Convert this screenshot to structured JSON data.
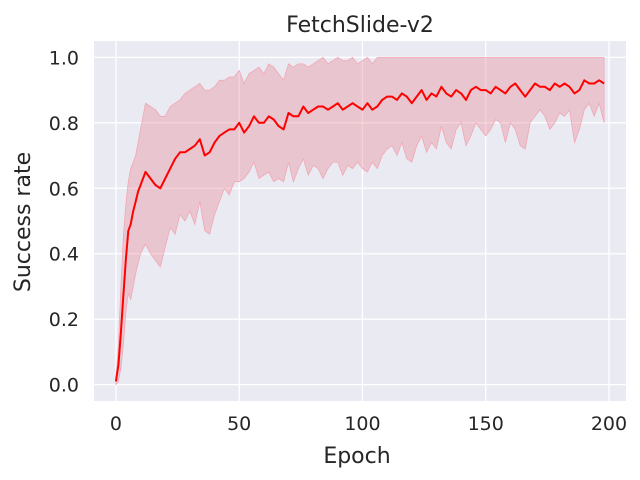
{
  "chart_data": {
    "type": "line",
    "title": "FetchSlide-v2",
    "xlabel": "Epoch",
    "ylabel": "Success rate",
    "xlim": [
      -8.9,
      206.9
    ],
    "ylim": [
      -0.05,
      1.05
    ],
    "xticks": [
      0,
      50,
      100,
      150,
      200
    ],
    "yticks": [
      0.0,
      0.2,
      0.4,
      0.6,
      0.8,
      1.0
    ],
    "xtick_labels": [
      "0",
      "50",
      "100",
      "150",
      "200"
    ],
    "ytick_labels": [
      "0.0",
      "0.2",
      "0.4",
      "0.6",
      "0.8",
      "1.0"
    ],
    "grid": true,
    "style": {
      "background": "#eaeaf2",
      "grid_color": "#ffffff",
      "line_color": "#ff0000",
      "band_fill": "rgba(232,130,145,0.35)",
      "band_edge": "#f2a7b4"
    },
    "series": [
      {
        "x": [
          0,
          1,
          2,
          3,
          4,
          5,
          6,
          7,
          8,
          9,
          10,
          12,
          14,
          16,
          18,
          20,
          22,
          24,
          26,
          28,
          30,
          32,
          34,
          36,
          38,
          40,
          42,
          44,
          46,
          48,
          50,
          52,
          54,
          56,
          58,
          60,
          62,
          64,
          66,
          68,
          70,
          72,
          74,
          76,
          78,
          80,
          82,
          84,
          86,
          88,
          90,
          92,
          94,
          96,
          98,
          100,
          102,
          104,
          106,
          108,
          110,
          112,
          114,
          116,
          118,
          120,
          122,
          124,
          126,
          128,
          130,
          132,
          134,
          136,
          138,
          140,
          142,
          144,
          146,
          148,
          150,
          152,
          154,
          156,
          158,
          160,
          162,
          164,
          166,
          168,
          170,
          172,
          174,
          176,
          178,
          180,
          182,
          184,
          186,
          188,
          190,
          192,
          194,
          196,
          198
        ],
        "y": [
          0.01,
          0.06,
          0.16,
          0.27,
          0.38,
          0.47,
          0.49,
          0.53,
          0.56,
          0.59,
          0.61,
          0.65,
          0.63,
          0.61,
          0.6,
          0.63,
          0.66,
          0.69,
          0.71,
          0.71,
          0.72,
          0.73,
          0.75,
          0.7,
          0.71,
          0.74,
          0.76,
          0.77,
          0.78,
          0.78,
          0.8,
          0.77,
          0.79,
          0.82,
          0.8,
          0.8,
          0.82,
          0.81,
          0.79,
          0.78,
          0.83,
          0.82,
          0.82,
          0.85,
          0.83,
          0.84,
          0.85,
          0.85,
          0.84,
          0.85,
          0.86,
          0.84,
          0.85,
          0.86,
          0.85,
          0.84,
          0.86,
          0.84,
          0.85,
          0.87,
          0.88,
          0.88,
          0.87,
          0.89,
          0.88,
          0.86,
          0.88,
          0.9,
          0.87,
          0.89,
          0.88,
          0.91,
          0.89,
          0.88,
          0.9,
          0.89,
          0.87,
          0.9,
          0.91,
          0.9,
          0.9,
          0.89,
          0.91,
          0.9,
          0.89,
          0.91,
          0.92,
          0.9,
          0.88,
          0.9,
          0.92,
          0.91,
          0.91,
          0.9,
          0.92,
          0.91,
          0.92,
          0.91,
          0.89,
          0.9,
          0.93,
          0.92,
          0.92,
          0.93,
          0.92
        ],
        "lower": [
          0.0,
          0.01,
          0.05,
          0.12,
          0.22,
          0.28,
          0.26,
          0.3,
          0.34,
          0.37,
          0.4,
          0.43,
          0.4,
          0.38,
          0.36,
          0.42,
          0.48,
          0.46,
          0.52,
          0.5,
          0.53,
          0.49,
          0.56,
          0.47,
          0.46,
          0.52,
          0.56,
          0.6,
          0.58,
          0.62,
          0.62,
          0.63,
          0.65,
          0.68,
          0.63,
          0.64,
          0.65,
          0.62,
          0.63,
          0.62,
          0.68,
          0.62,
          0.66,
          0.69,
          0.64,
          0.67,
          0.66,
          0.63,
          0.66,
          0.68,
          0.68,
          0.64,
          0.67,
          0.66,
          0.68,
          0.66,
          0.65,
          0.68,
          0.66,
          0.7,
          0.72,
          0.73,
          0.7,
          0.74,
          0.69,
          0.68,
          0.73,
          0.76,
          0.71,
          0.74,
          0.72,
          0.79,
          0.74,
          0.72,
          0.78,
          0.8,
          0.73,
          0.76,
          0.8,
          0.78,
          0.76,
          0.78,
          0.81,
          0.8,
          0.74,
          0.8,
          0.78,
          0.73,
          0.72,
          0.8,
          0.82,
          0.84,
          0.82,
          0.78,
          0.8,
          0.83,
          0.82,
          0.84,
          0.74,
          0.78,
          0.84,
          0.86,
          0.82,
          0.86,
          0.8
        ],
        "upper": [
          0.02,
          0.12,
          0.3,
          0.45,
          0.55,
          0.62,
          0.66,
          0.68,
          0.7,
          0.74,
          0.78,
          0.86,
          0.85,
          0.84,
          0.82,
          0.82,
          0.85,
          0.86,
          0.87,
          0.89,
          0.9,
          0.91,
          0.92,
          0.9,
          0.9,
          0.91,
          0.93,
          0.93,
          0.94,
          0.94,
          0.96,
          0.92,
          0.95,
          0.96,
          0.97,
          0.95,
          0.98,
          0.97,
          0.95,
          0.93,
          0.98,
          0.97,
          0.98,
          0.98,
          0.97,
          0.98,
          0.99,
          1.0,
          0.98,
          0.99,
          1.0,
          0.99,
          0.99,
          1.0,
          0.98,
          0.99,
          1.0,
          0.98,
          1.0,
          1.0,
          1.0,
          1.0,
          1.0,
          1.0,
          1.0,
          1.0,
          1.0,
          1.0,
          1.0,
          1.0,
          1.0,
          1.0,
          1.0,
          1.0,
          1.0,
          1.0,
          1.0,
          1.0,
          1.0,
          1.0,
          1.0,
          1.0,
          1.0,
          1.0,
          1.0,
          1.0,
          1.0,
          1.0,
          1.0,
          1.0,
          1.0,
          1.0,
          1.0,
          1.0,
          1.0,
          1.0,
          1.0,
          1.0,
          1.0,
          1.0,
          1.0,
          1.0,
          1.0,
          1.0,
          1.0
        ]
      }
    ]
  }
}
